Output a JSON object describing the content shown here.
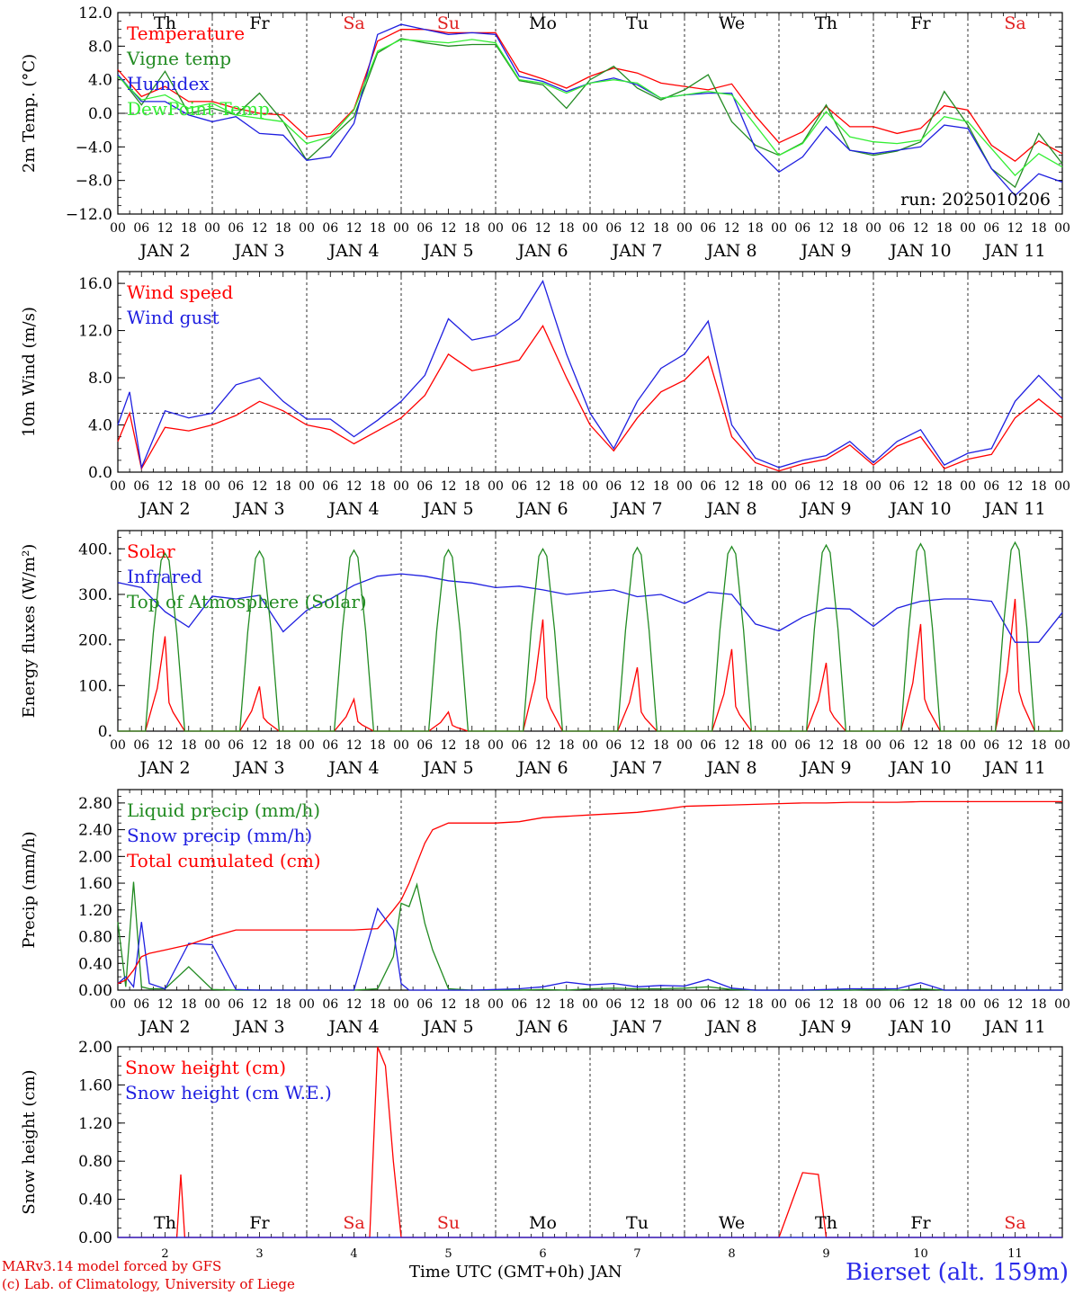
{
  "footer": {
    "credit_line1": "MARv3.14 model forced by GFS",
    "credit_line2": "(c) Lab. of Climatology, University of Liege",
    "station": "Bierset (alt. 159m)",
    "xlabel": "Time UTC (GMT+0h) JAN"
  },
  "run_label": "run: 2025010206",
  "days": {
    "abbrev": [
      "Th",
      "Fr",
      "Sa",
      "Su",
      "Mo",
      "Tu",
      "We",
      "Th",
      "Fr",
      "Sa"
    ],
    "weekend_color": "#e02020",
    "weekday_color": "#000000",
    "weekend": [
      false,
      false,
      true,
      true,
      false,
      false,
      false,
      false,
      false,
      true
    ],
    "dates": [
      "JAN  2",
      "JAN  3",
      "JAN  4",
      "JAN  5",
      "JAN  6",
      "JAN  7",
      "JAN  8",
      "JAN  9",
      "JAN 10",
      "JAN 11"
    ],
    "day_numbers": [
      "2",
      "3",
      "4",
      "5",
      "6",
      "7",
      "8",
      "9",
      "10",
      "11"
    ],
    "hour_ticks": [
      "00",
      "06",
      "12",
      "18"
    ]
  },
  "chart_data": [
    {
      "type": "line",
      "ylabel": "2m Temp. (°C)",
      "ylim": [
        -12,
        12
      ],
      "yticks": [
        "12.0",
        "8.0",
        "4.0",
        "0.0",
        "−4.0",
        "−8.0",
        "−12.0"
      ],
      "ytick_values": [
        12,
        8,
        4,
        0,
        -4,
        -8,
        -12
      ],
      "ref_line": 0,
      "x_hours": [
        0,
        6,
        12,
        18,
        24,
        30,
        36,
        42,
        48,
        54,
        60,
        66,
        72,
        78,
        84,
        90,
        96,
        102,
        108,
        114,
        120,
        126,
        132,
        138,
        144,
        150,
        156,
        162,
        168,
        174,
        180,
        186,
        192,
        198,
        204,
        210,
        216,
        222,
        228,
        234,
        240
      ],
      "series": [
        {
          "name": "Temperature",
          "color": "#ff0000",
          "values": [
            5.2,
            2,
            3.2,
            1.4,
            1.4,
            0.6,
            0,
            -0.2,
            -2.8,
            -2.4,
            0.5,
            8.6,
            10,
            10,
            9.6,
            9.6,
            9.6,
            5,
            4.1,
            3,
            4.4,
            5.4,
            4.8,
            3.6,
            3.2,
            2.8,
            3.5,
            -0.3,
            -3.5,
            -2.2,
            0.8,
            -1.6,
            -1.6,
            -2.4,
            -1.8,
            0.9,
            0.4,
            -3.8,
            -5.7,
            -3.3,
            -4.8
          ]
        },
        {
          "name": "Vigne temp",
          "color": "#228b22",
          "values": [
            4.6,
            1,
            5,
            0,
            0.6,
            -0.2,
            2.4,
            -1,
            -5.6,
            -3,
            -0.4,
            7.2,
            8.9,
            8.4,
            8,
            8.2,
            8.2,
            3.9,
            3.4,
            0.6,
            4,
            5.6,
            3,
            1.6,
            2.8,
            4.6,
            -1,
            -3.8,
            -5,
            -3.5,
            1,
            -4.4,
            -5,
            -4.5,
            -3.4,
            2.6,
            -1.4,
            -6.6,
            -8.8,
            -2.4,
            -6
          ]
        },
        {
          "name": "Humidex",
          "color": "#1f1fe0",
          "values": [
            4.6,
            1.4,
            1.4,
            -0.2,
            -1,
            -0.4,
            -2.4,
            -2.6,
            -5.6,
            -5.2,
            -1.2,
            9.4,
            10.6,
            10,
            9.4,
            9.6,
            9.4,
            4.4,
            3.8,
            2.6,
            3.6,
            4.2,
            3.4,
            1.8,
            2.2,
            2.4,
            2.4,
            -4.2,
            -7,
            -5.2,
            -1.6,
            -4.4,
            -4.8,
            -4.4,
            -4,
            -1.4,
            -1.8,
            -6.6,
            -9.8,
            -7.2,
            -8.2
          ]
        },
        {
          "name": "DewPoint Temp",
          "color": "#33ee33",
          "values": [
            4.4,
            1.6,
            2.2,
            0.6,
            1.2,
            -0.2,
            -0.6,
            -1,
            -3.6,
            -2.8,
            0.4,
            7.4,
            8.8,
            8.6,
            8.4,
            8.8,
            8.4,
            4,
            3.6,
            2.4,
            3.6,
            4,
            3.6,
            1.8,
            2.2,
            2.6,
            2.2,
            -1.4,
            -5,
            -3.6,
            0.2,
            -2.8,
            -3.4,
            -3.6,
            -3.2,
            -0.4,
            -1,
            -4.2,
            -7.4,
            -4.8,
            -6.4
          ]
        }
      ]
    },
    {
      "type": "line",
      "ylabel": "10m Wind (m/s)",
      "ylim": [
        0,
        17
      ],
      "yticks": [
        "16.0",
        "12.0",
        "8.0",
        "4.0",
        "0.0"
      ],
      "ytick_values": [
        16,
        12,
        8,
        4,
        0
      ],
      "ref_line": 5,
      "x_hours": [
        0,
        3,
        6,
        12,
        18,
        24,
        30,
        36,
        42,
        48,
        54,
        60,
        66,
        72,
        78,
        84,
        90,
        96,
        102,
        108,
        114,
        120,
        126,
        132,
        138,
        144,
        150,
        156,
        162,
        168,
        174,
        180,
        186,
        192,
        198,
        204,
        210,
        216,
        222,
        228,
        234,
        240
      ],
      "series": [
        {
          "name": "Wind speed",
          "color": "#ff0000",
          "values": [
            2.6,
            5,
            0.3,
            3.8,
            3.5,
            4,
            4.8,
            6,
            5.2,
            4,
            3.6,
            2.4,
            3.5,
            4.6,
            6.5,
            10,
            8.6,
            9,
            9.5,
            12.4,
            8,
            4,
            1.8,
            4.6,
            6.8,
            7.8,
            9.8,
            3,
            0.8,
            0.1,
            0.7,
            1.1,
            2.3,
            0.6,
            2.2,
            3,
            0.3,
            1.1,
            1.5,
            4.6,
            6.2,
            4.6
          ]
        },
        {
          "name": "Wind gust",
          "color": "#1f1fe0",
          "values": [
            4,
            6.8,
            0.4,
            5.2,
            4.6,
            5,
            7.4,
            8,
            6,
            4.5,
            4.5,
            3,
            4.4,
            6,
            8.2,
            13,
            11.2,
            11.6,
            13,
            16.2,
            10,
            5,
            2,
            6,
            8.8,
            10,
            12.8,
            4,
            1.2,
            0.4,
            1,
            1.4,
            2.6,
            0.8,
            2.6,
            3.6,
            0.6,
            1.6,
            2,
            6,
            8.2,
            6.2
          ]
        }
      ]
    },
    {
      "type": "line",
      "ylabel": "Energy fluxes (W/m²)",
      "ylim": [
        0,
        440
      ],
      "yticks": [
        "400.",
        "300.",
        "200.",
        "100.",
        "0."
      ],
      "ytick_values": [
        400,
        300,
        200,
        100,
        0
      ],
      "x_hours": [
        0,
        6,
        12,
        18,
        24,
        30,
        36,
        42,
        48,
        54,
        60,
        66,
        72,
        78,
        84,
        90,
        96,
        102,
        108,
        114,
        120,
        126,
        132,
        138,
        144,
        150,
        156,
        162,
        168,
        174,
        180,
        186,
        192,
        198,
        204,
        210,
        216,
        222,
        228,
        234,
        240
      ],
      "series": [
        {
          "name": "Solar",
          "color": "#ff0000",
          "daily_peaks": [
            208,
            98,
            70,
            42,
            245,
            140,
            180,
            150,
            235,
            290
          ]
        },
        {
          "name": "Infrared",
          "color": "#1f1fe0",
          "values": [
            326,
            315,
            262,
            228,
            296,
            290,
            298,
            218,
            265,
            290,
            320,
            340,
            345,
            340,
            330,
            325,
            315,
            318,
            310,
            300,
            305,
            310,
            295,
            300,
            280,
            305,
            300,
            235,
            220,
            250,
            270,
            268,
            230,
            270,
            285,
            290,
            290,
            285,
            195,
            195,
            260
          ]
        },
        {
          "name": "Top of Atmosphere (Solar)",
          "color": "#228b22",
          "daily_peaks": [
            390,
            395,
            397,
            398,
            400,
            403,
            405,
            408,
            411,
            414
          ]
        }
      ]
    },
    {
      "type": "line",
      "ylabel": "Precip (mm/h)",
      "ylim": [
        0,
        3
      ],
      "yticks": [
        "2.80",
        "2.40",
        "2.00",
        "1.60",
        "1.20",
        "0.80",
        "0.40",
        "0.00"
      ],
      "ytick_values": [
        2.8,
        2.4,
        2.0,
        1.6,
        1.2,
        0.8,
        0.4,
        0
      ],
      "x_hours": [
        0,
        2,
        4,
        6,
        8,
        12,
        18,
        24,
        30,
        36,
        42,
        48,
        54,
        60,
        66,
        70,
        72,
        74,
        76,
        78,
        80,
        84,
        90,
        96,
        102,
        108,
        114,
        120,
        126,
        132,
        138,
        144,
        150,
        156,
        162,
        168,
        174,
        180,
        186,
        192,
        198,
        204,
        210,
        216,
        222,
        228,
        234,
        240
      ],
      "series": [
        {
          "name": "Liquid precip (mm/h)",
          "color": "#228b22",
          "values": [
            1.02,
            0.05,
            1.62,
            0.05,
            0.02,
            0.02,
            0.35,
            0.01,
            0,
            0,
            0,
            0,
            0,
            0,
            0.02,
            0.5,
            1.3,
            1.25,
            1.58,
            1.0,
            0.6,
            0.02,
            0,
            0,
            0,
            0.01,
            0,
            0.02,
            0.03,
            0.02,
            0.02,
            0.03,
            0.05,
            0.01,
            0,
            0,
            0,
            0,
            0,
            0.01,
            0,
            0.02,
            0,
            0,
            0,
            0,
            0,
            0
          ]
        },
        {
          "name": "Snow precip (mm/h)",
          "color": "#1f1fe0",
          "values": [
            0.1,
            0.2,
            0.05,
            1.02,
            0.1,
            0.02,
            0.7,
            0.68,
            0.01,
            0,
            0,
            0,
            0,
            0,
            1.22,
            0.9,
            0.1,
            0,
            0,
            0,
            0,
            0,
            0,
            0.01,
            0.02,
            0.05,
            0.12,
            0.08,
            0.1,
            0.05,
            0.07,
            0.06,
            0.16,
            0.03,
            0,
            0,
            0,
            0.01,
            0.02,
            0.02,
            0.02,
            0.11,
            0,
            0,
            0,
            0,
            0,
            0
          ]
        },
        {
          "name": "Total cumulated (cm)",
          "color": "#ff0000",
          "values": [
            0.1,
            0.15,
            0.3,
            0.5,
            0.55,
            0.6,
            0.68,
            0.8,
            0.9,
            0.9,
            0.9,
            0.9,
            0.9,
            0.9,
            0.92,
            1.2,
            1.35,
            1.6,
            1.9,
            2.2,
            2.4,
            2.5,
            2.5,
            2.5,
            2.52,
            2.58,
            2.6,
            2.62,
            2.64,
            2.66,
            2.7,
            2.75,
            2.76,
            2.77,
            2.78,
            2.79,
            2.8,
            2.8,
            2.81,
            2.81,
            2.81,
            2.82,
            2.82,
            2.82,
            2.82,
            2.82,
            2.82,
            2.82
          ]
        }
      ]
    },
    {
      "type": "line",
      "ylabel": "Snow height (cm)",
      "ylim": [
        0,
        2
      ],
      "yticks": [
        "2.00",
        "1.60",
        "1.20",
        "0.80",
        "0.40",
        "0.00"
      ],
      "ytick_values": [
        2,
        1.6,
        1.2,
        0.8,
        0.4,
        0
      ],
      "x_hours": [
        0,
        15,
        16,
        17,
        60,
        64,
        66,
        68,
        70,
        72,
        168,
        174,
        178,
        180,
        240
      ],
      "series": [
        {
          "name": "Snow height (cm)",
          "color": "#ff0000",
          "values": [
            0,
            0,
            0.66,
            0,
            0,
            0,
            2.0,
            1.8,
            0.8,
            0,
            0,
            0.68,
            0.66,
            0,
            0
          ]
        },
        {
          "name": "Snow height (cm W.E.)",
          "color": "#1f1fe0",
          "values": [
            0,
            0,
            0,
            0,
            0,
            0,
            0,
            0,
            0,
            0,
            0,
            0,
            0,
            0,
            0
          ]
        }
      ]
    }
  ]
}
